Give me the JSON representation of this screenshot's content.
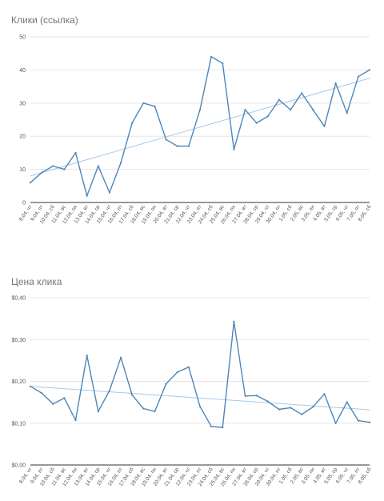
{
  "colors": {
    "series": "#4e86b8",
    "trend": "#a8c8e8",
    "grid": "#e6e6e6",
    "axis": "#333333"
  },
  "chart_data": [
    {
      "type": "line",
      "title": "Клики (ссылка)",
      "xlabel": "",
      "ylabel": "",
      "categories": [
        "8.04, чт",
        "9.04, пт",
        "10.04, сб",
        "11.04, вс",
        "12.04, пн",
        "13.04, вт",
        "14.04, ср",
        "15.04, чт",
        "16.04, пт",
        "17.04, сб",
        "18.04, вс",
        "19.04, пн",
        "20.04, вт",
        "21.04, ср",
        "22.04, чт",
        "23.04, пт",
        "24.04, сб",
        "25.04, вс",
        "26.04, пн",
        "27.04, вт",
        "28.04, ср",
        "29.04, чт",
        "30.04, пт",
        "1.05, сб",
        "2.05, вс",
        "3.05, пн",
        "4.05, вт",
        "5.05, ср",
        "6.05, чт",
        "7.05, пт",
        "8.05, сб"
      ],
      "series": [
        {
          "values": [
            6,
            9,
            11,
            10,
            15,
            2,
            11,
            3,
            12,
            24,
            30,
            29,
            19,
            17,
            17,
            28,
            44,
            42,
            16,
            28,
            24,
            26,
            31,
            28,
            33,
            28,
            23,
            36,
            27,
            38,
            40
          ]
        }
      ],
      "trendline": {
        "start": 8,
        "end": 37.5
      },
      "ylim": [
        0,
        50
      ],
      "yticks": [
        0,
        10,
        20,
        30,
        40,
        50
      ],
      "ytick_labels": [
        "0",
        "10",
        "20",
        "30",
        "40",
        "50"
      ],
      "grid": true,
      "legend": "none"
    },
    {
      "type": "line",
      "title": "Цена клика",
      "xlabel": "",
      "ylabel": "",
      "categories": [
        "8.04, чт",
        "9.04, пт",
        "10.04, сб",
        "11.04, вс",
        "12.04, пн",
        "13.04, вт",
        "14.04, ср",
        "15.04, чт",
        "16.04, пт",
        "17.04, сб",
        "18.04, вс",
        "19.04, пн",
        "20.04, вт",
        "21.04, ср",
        "22.04, чт",
        "23.04, пт",
        "24.04, сб",
        "25.04, вс",
        "26.04, пн",
        "27.04, вт",
        "28.04, ср",
        "29.04, чт",
        "30.04, пт",
        "1.05, сб",
        "2.05, вс",
        "3.05, пн",
        "4.05, вт",
        "5.05, ср",
        "6.05, чт",
        "7.05, пт",
        "8.05, сб"
      ],
      "series": [
        {
          "values": [
            0.188,
            0.172,
            0.146,
            0.16,
            0.107,
            0.262,
            0.128,
            0.178,
            0.257,
            0.167,
            0.135,
            0.128,
            0.194,
            0.222,
            0.234,
            0.14,
            0.092,
            0.09,
            0.343,
            0.165,
            0.166,
            0.152,
            0.133,
            0.137,
            0.121,
            0.139,
            0.17,
            0.1,
            0.15,
            0.106,
            0.102
          ]
        }
      ],
      "trendline": {
        "start": 0.188,
        "end": 0.132
      },
      "ylim": [
        0,
        0.4
      ],
      "yticks": [
        0,
        0.1,
        0.2,
        0.3,
        0.4
      ],
      "ytick_labels": [
        "$0,00",
        "$0,10",
        "$0,20",
        "$0,30",
        "$0,40"
      ],
      "grid": true,
      "legend": "none"
    }
  ]
}
